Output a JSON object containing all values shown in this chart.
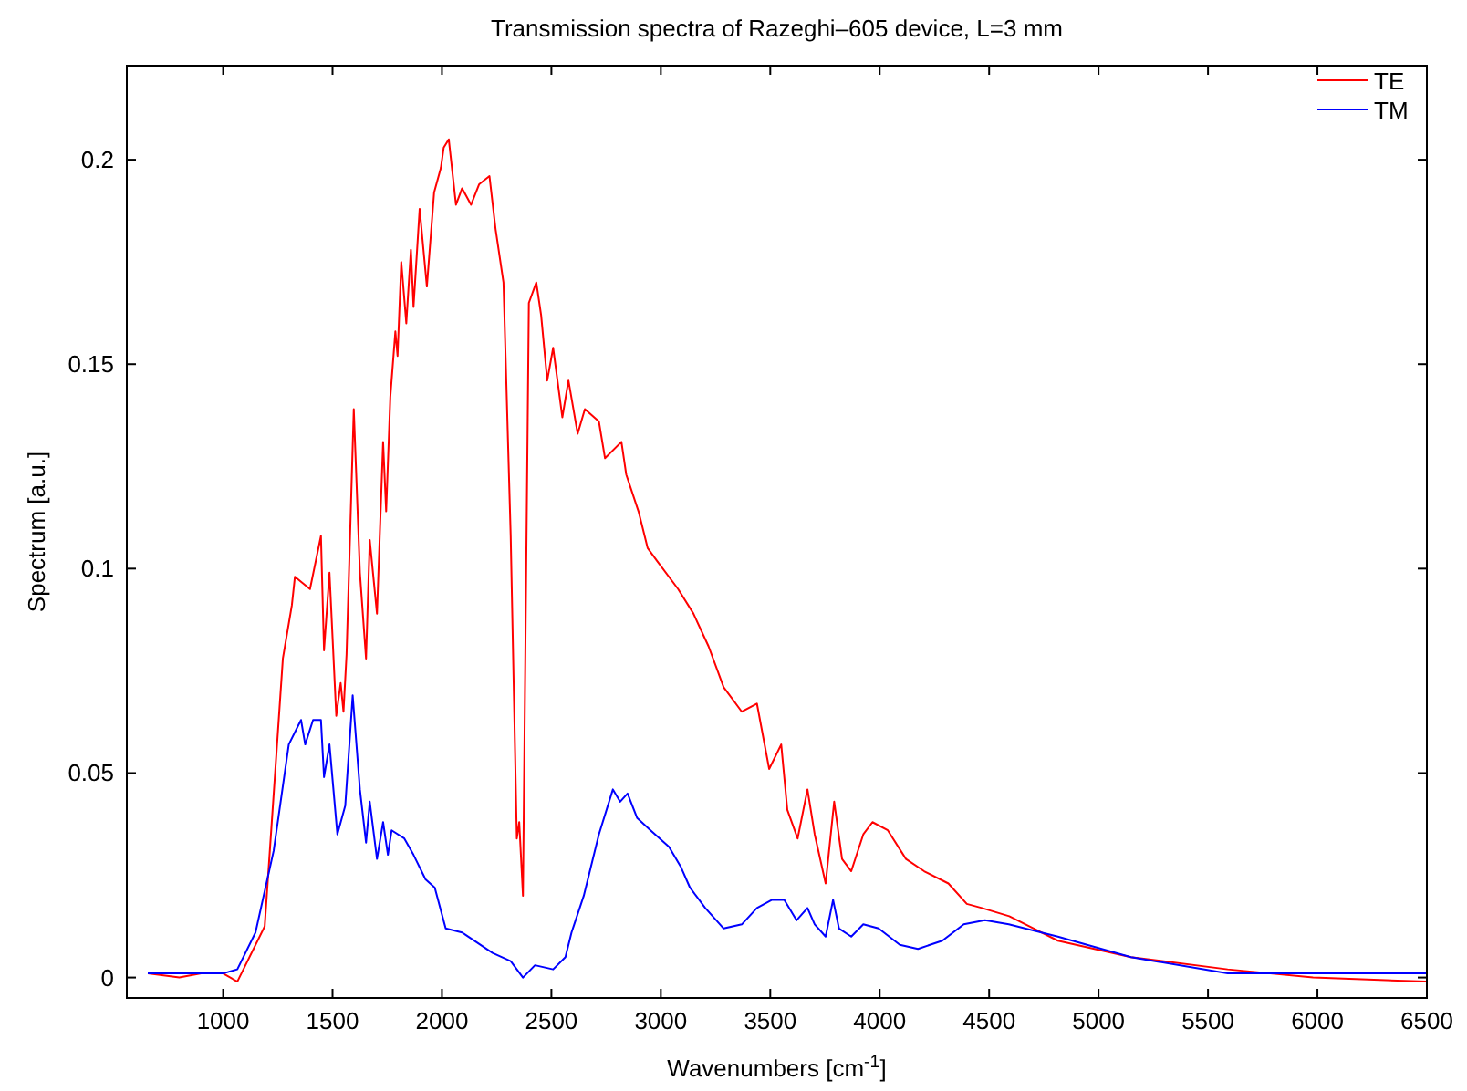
{
  "chart_data": {
    "type": "line",
    "title": "Transmission spectra of Razeghi–605 device, L=3 mm",
    "xlabel": "Wavenumbers [cm$^{-1}$]",
    "ylabel": "Spectrum [a.u.]",
    "xlim": [
      560,
      6500
    ],
    "ylim": [
      -0.005,
      0.223
    ],
    "xticks": [
      1000,
      1500,
      2000,
      2500,
      3000,
      3500,
      4000,
      4500,
      5000,
      5500,
      6000,
      6500
    ],
    "yticks": [
      0,
      0.05,
      {
        "value": 0.1,
        "label": "0.1"
      },
      0.15,
      {
        "value": 0.2,
        "label": "0.2"
      }
    ],
    "grid": false,
    "legend": "top right",
    "line_style": "solid",
    "marker": "none",
    "series": [
      {
        "name": "TE",
        "color": "#ff0000",
        "x": [
          656,
          800,
          900,
          1000,
          1065,
          1190,
          1273,
          1314,
          1328,
          1397,
          1447,
          1461,
          1486,
          1517,
          1537,
          1550,
          1564,
          1597,
          1625,
          1653,
          1670,
          1703,
          1731,
          1745,
          1764,
          1787,
          1797,
          1814,
          1837,
          1858,
          1870,
          1898,
          1931,
          1964,
          1995,
          2008,
          2031,
          2064,
          2092,
          2133,
          2170,
          2217,
          2245,
          2281,
          2314,
          2342,
          2353,
          2370,
          2397,
          2431,
          2453,
          2481,
          2508,
          2550,
          2578,
          2620,
          2653,
          2717,
          2745,
          2820,
          2842,
          2898,
          2940,
          2981,
          3079,
          3149,
          3218,
          3287,
          3370,
          3439,
          3495,
          3550,
          3578,
          3625,
          3670,
          3703,
          3753,
          3792,
          3828,
          3870,
          3925,
          3967,
          4037,
          4120,
          4203,
          4314,
          4398,
          4467,
          4592,
          4814,
          5148,
          5590,
          5980,
          6500
        ],
        "values": [
          0.001,
          0.0,
          0.001,
          0.001,
          -0.001,
          0.0125,
          0.078,
          0.091,
          0.098,
          0.095,
          0.108,
          0.08,
          0.099,
          0.064,
          0.072,
          0.065,
          0.079,
          0.139,
          0.099,
          0.078,
          0.107,
          0.089,
          0.131,
          0.114,
          0.142,
          0.158,
          0.152,
          0.175,
          0.16,
          0.178,
          0.164,
          0.188,
          0.169,
          0.192,
          0.198,
          0.203,
          0.205,
          0.189,
          0.193,
          0.189,
          0.194,
          0.196,
          0.183,
          0.17,
          0.108,
          0.034,
          0.038,
          0.02,
          0.165,
          0.17,
          0.162,
          0.146,
          0.154,
          0.137,
          0.146,
          0.133,
          0.139,
          0.136,
          0.127,
          0.131,
          0.123,
          0.114,
          0.105,
          0.102,
          0.095,
          0.089,
          0.081,
          0.071,
          0.065,
          0.067,
          0.051,
          0.057,
          0.041,
          0.034,
          0.046,
          0.035,
          0.023,
          0.043,
          0.029,
          0.026,
          0.035,
          0.038,
          0.036,
          0.029,
          0.026,
          0.023,
          0.018,
          0.017,
          0.015,
          0.009,
          0.005,
          0.002,
          0.0,
          -0.001
        ]
      },
      {
        "name": "TM",
        "color": "#0000ff",
        "x": [
          656,
          800,
          900,
          1000,
          1065,
          1148,
          1231,
          1300,
          1356,
          1375,
          1411,
          1447,
          1461,
          1486,
          1522,
          1558,
          1592,
          1625,
          1653,
          1670,
          1703,
          1731,
          1753,
          1770,
          1828,
          1870,
          1925,
          1967,
          2017,
          2092,
          2231,
          2314,
          2370,
          2425,
          2508,
          2564,
          2592,
          2648,
          2717,
          2781,
          2814,
          2848,
          2892,
          2953,
          3037,
          3092,
          3133,
          3203,
          3287,
          3370,
          3439,
          3508,
          3564,
          3620,
          3670,
          3703,
          3753,
          3787,
          3814,
          3870,
          3925,
          3995,
          4092,
          4175,
          4286,
          4384,
          4481,
          4590,
          4814,
          5148,
          5590,
          5980,
          6500
        ],
        "values": [
          0.001,
          0.001,
          0.001,
          0.001,
          0.002,
          0.011,
          0.031,
          0.057,
          0.063,
          0.057,
          0.063,
          0.063,
          0.049,
          0.057,
          0.035,
          0.042,
          0.069,
          0.046,
          0.033,
          0.043,
          0.029,
          0.038,
          0.03,
          0.036,
          0.034,
          0.03,
          0.024,
          0.022,
          0.012,
          0.011,
          0.006,
          0.004,
          0.0,
          0.003,
          0.002,
          0.005,
          0.011,
          0.02,
          0.035,
          0.046,
          0.043,
          0.045,
          0.039,
          0.036,
          0.032,
          0.027,
          0.022,
          0.017,
          0.012,
          0.013,
          0.017,
          0.019,
          0.019,
          0.014,
          0.017,
          0.013,
          0.01,
          0.019,
          0.012,
          0.01,
          0.013,
          0.012,
          0.008,
          0.007,
          0.009,
          0.013,
          0.014,
          0.013,
          0.01,
          0.005,
          0.001,
          0.001,
          0.001
        ]
      }
    ]
  }
}
